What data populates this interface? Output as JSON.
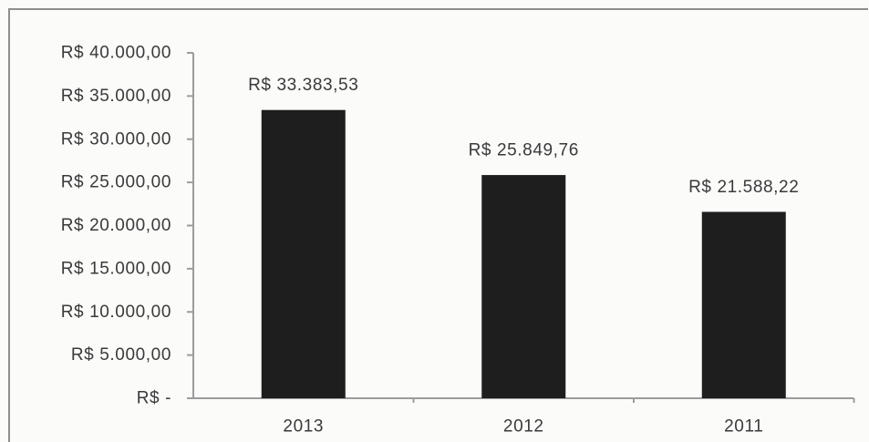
{
  "chart_data": {
    "type": "bar",
    "categories": [
      "2013",
      "2012",
      "2011"
    ],
    "values": [
      33383.53,
      25849.76,
      21588.22
    ],
    "data_labels": [
      "R$ 33.383,53",
      "R$ 25.849,76",
      "R$ 21.588,22"
    ],
    "y_ticks": [
      0,
      5000,
      10000,
      15000,
      20000,
      25000,
      30000,
      35000,
      40000
    ],
    "y_tick_labels": [
      "R$ -",
      "R$ 5.000,00",
      "R$ 10.000,00",
      "R$ 15.000,00",
      "R$ 20.000,00",
      "R$ 25.000,00",
      "R$ 30.000,00",
      "R$ 35.000,00",
      "R$ 40.000,00"
    ],
    "ylim": [
      0,
      40000
    ],
    "grid": false,
    "legend": false,
    "colors": {
      "bar": "#1e1e1e",
      "text": "#3a3a3a",
      "axis": "#9c9c9c",
      "background": "#fbfbfa"
    }
  }
}
